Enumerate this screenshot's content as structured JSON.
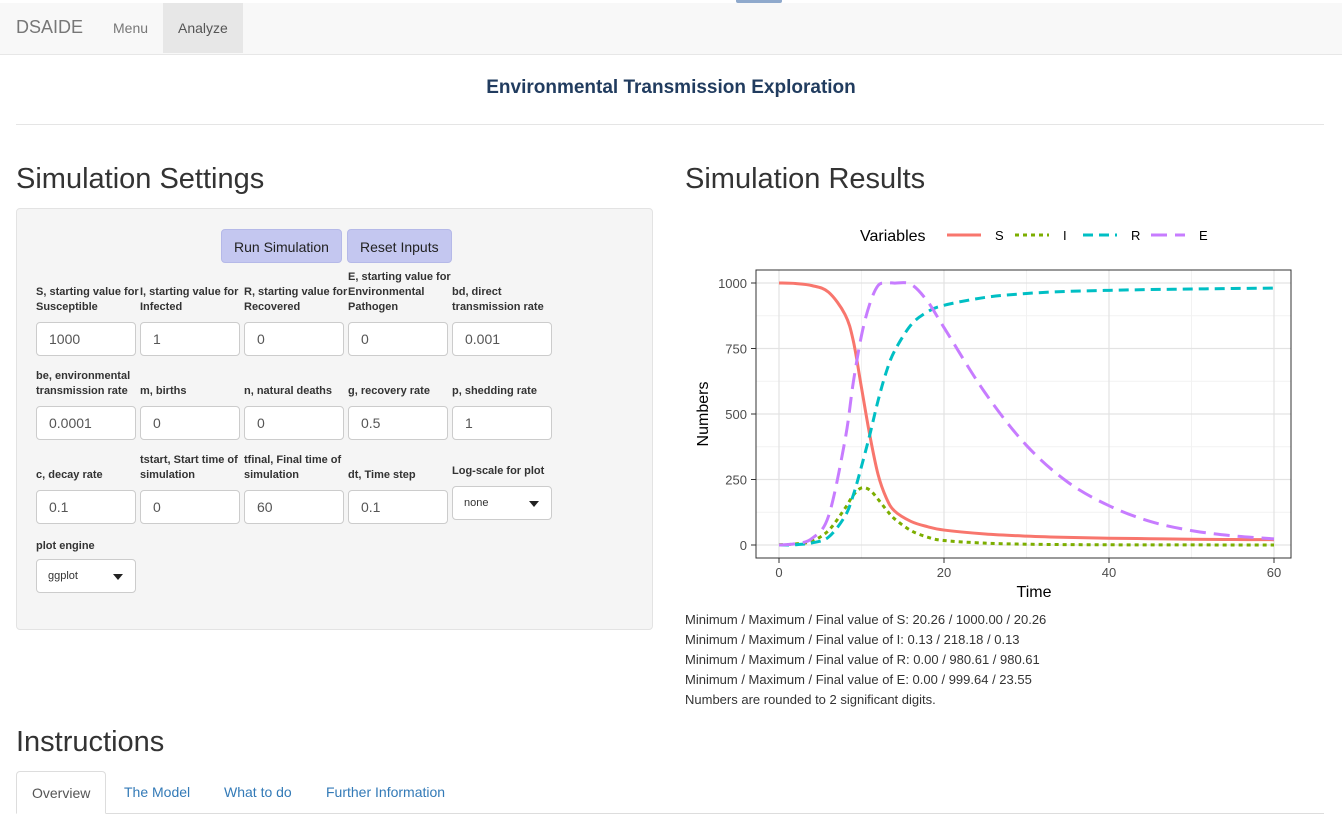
{
  "navbar": {
    "brand": "DSAIDE",
    "items": [
      {
        "label": "Menu"
      },
      {
        "label": "Analyze"
      }
    ]
  },
  "page_title": "Environmental Transmission Exploration",
  "settings": {
    "heading": "Simulation Settings",
    "run_button": "Run Simulation",
    "reset_button": "Reset Inputs",
    "inputs": [
      {
        "label": "S, starting value for Susceptible",
        "value": "1000"
      },
      {
        "label": "I, starting value for Infected",
        "value": "1"
      },
      {
        "label": "R, starting value for Recovered",
        "value": "0"
      },
      {
        "label": "E, starting value for Environmental Pathogen",
        "value": "0"
      },
      {
        "label": "bd, direct transmission rate",
        "value": "0.001"
      },
      {
        "label": "be, environmental transmission rate",
        "value": "0.0001"
      },
      {
        "label": "m, births",
        "value": "0"
      },
      {
        "label": "n, natural deaths",
        "value": "0"
      },
      {
        "label": "g, recovery rate",
        "value": "0.5"
      },
      {
        "label": "p, shedding rate",
        "value": "1"
      },
      {
        "label": "c, decay rate",
        "value": "0.1"
      },
      {
        "label": "tstart, Start time of simulation",
        "value": "0"
      },
      {
        "label": "tfinal, Final time of simulation",
        "value": "60"
      },
      {
        "label": "dt, Time step",
        "value": "0.1"
      }
    ],
    "logscale": {
      "label": "Log-scale for plot",
      "value": "none"
    },
    "plot_engine": {
      "label": "plot engine",
      "value": "ggplot"
    }
  },
  "results": {
    "heading": "Simulation Results",
    "stats": [
      "Minimum / Maximum / Final value of S: 20.26 / 1000.00 / 20.26",
      "Minimum / Maximum / Final value of I: 0.13 / 218.18 / 0.13",
      "Minimum / Maximum / Final value of R: 0.00 / 980.61 / 980.61",
      "Minimum / Maximum / Final value of E: 0.00 / 999.64 / 23.55",
      "Numbers are rounded to 2 significant digits."
    ]
  },
  "chart_data": {
    "type": "line",
    "xlabel": "Time",
    "ylabel": "Numbers",
    "legend_title": "Variables",
    "legend_position": "top",
    "grid": true,
    "xlim": [
      0,
      60
    ],
    "ylim": [
      0,
      1000
    ],
    "xticks": [
      0,
      20,
      40,
      60
    ],
    "yticks": [
      0,
      250,
      500,
      750,
      1000
    ],
    "x": [
      0,
      2,
      4,
      6,
      8,
      9,
      10,
      11,
      12,
      13,
      14,
      16,
      18,
      20,
      25,
      30,
      35,
      40,
      45,
      50,
      55,
      60
    ],
    "series": [
      {
        "name": "S",
        "color": "#f8766d",
        "dash": "solid",
        "values": [
          1000,
          998,
          990,
          965,
          880,
          780,
          600,
          420,
          270,
          180,
          130,
          90,
          70,
          57,
          42,
          34,
          29,
          26,
          24,
          22,
          21,
          20.26
        ]
      },
      {
        "name": "I",
        "color": "#7cae00",
        "dash": "dotted",
        "values": [
          1,
          4,
          15,
          55,
          140,
          190,
          218,
          210,
          175,
          135,
          100,
          55,
          30,
          17,
          7,
          3,
          1.5,
          0.8,
          0.5,
          0.3,
          0.2,
          0.13
        ]
      },
      {
        "name": "R",
        "color": "#00bfc4",
        "dash": "dashed",
        "values": [
          0,
          1,
          8,
          30,
          110,
          190,
          300,
          420,
          550,
          660,
          740,
          840,
          890,
          915,
          945,
          960,
          968,
          972,
          975,
          977,
          979,
          980.61
        ]
      },
      {
        "name": "E",
        "color": "#c77cff",
        "dash": "longdash",
        "values": [
          0,
          5,
          25,
          110,
          400,
          620,
          800,
          920,
          990,
          1000,
          999.64,
          995,
          930,
          830,
          580,
          380,
          240,
          150,
          90,
          55,
          35,
          23.55
        ]
      }
    ]
  },
  "instructions": {
    "heading": "Instructions",
    "tabs": [
      {
        "label": "Overview"
      },
      {
        "label": "The Model"
      },
      {
        "label": "What to do"
      },
      {
        "label": "Further Information"
      }
    ]
  }
}
